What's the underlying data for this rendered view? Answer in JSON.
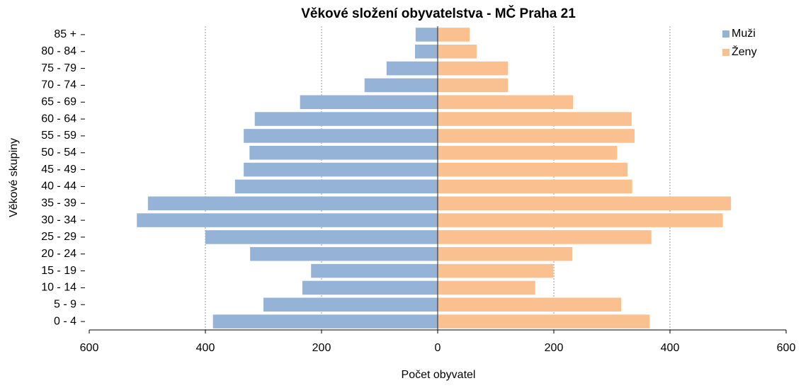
{
  "chart_data": {
    "type": "pyramid",
    "title": "Věkové složení obyvatelstva - MČ Praha 21",
    "x_label": "Počet obyvatel",
    "y_label": "Věkové skupiny",
    "categories": [
      "0  -  4",
      "5  -  9",
      "10 - 14",
      "15 - 19",
      "20 - 24",
      "25 - 29",
      "30 - 34",
      "35 - 39",
      "40 - 44",
      "45 - 49",
      "50 - 54",
      "55 - 59",
      "60 - 64",
      "65 - 69",
      "70 - 74",
      "75 - 79",
      "80 - 84",
      "85 +"
    ],
    "series": [
      {
        "name": "Muži",
        "color": "#95b3d7",
        "values": [
          -387,
          -300,
          -233,
          -218,
          -323,
          -400,
          -518,
          -499,
          -349,
          -334,
          -324,
          -334,
          -315,
          -237,
          -126,
          -88,
          -39,
          -38
        ]
      },
      {
        "name": "Ženy",
        "color": "#fac090",
        "values": [
          365,
          316,
          168,
          199,
          232,
          368,
          491,
          505,
          335,
          327,
          309,
          339,
          334,
          233,
          121,
          121,
          67,
          55
        ]
      }
    ],
    "xlim": [
      -600,
      600
    ],
    "xticks": [
      {
        "value": -600,
        "label": "600"
      },
      {
        "value": -400,
        "label": "400"
      },
      {
        "value": -200,
        "label": "200"
      },
      0,
      200,
      400,
      600
    ],
    "grid": true,
    "legend": "top-right"
  }
}
